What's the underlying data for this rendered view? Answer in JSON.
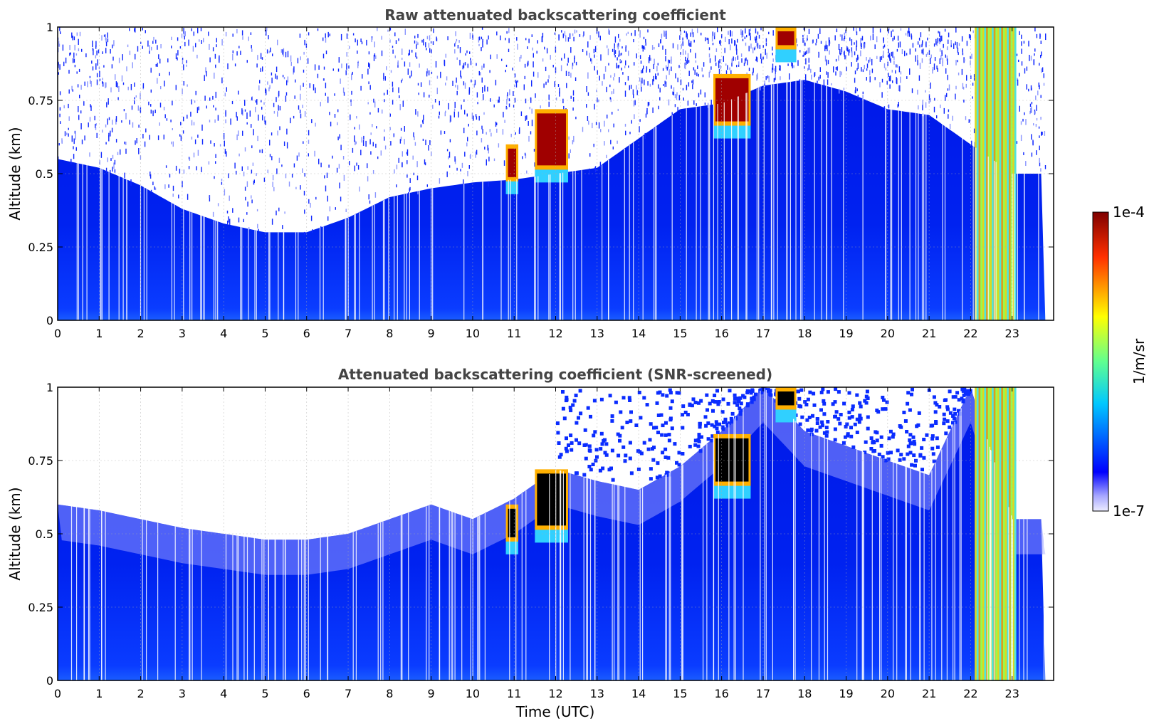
{
  "chart_data": [
    {
      "type": "heatmap",
      "title": "Raw attenuated backscattering coefficient",
      "xlabel": "",
      "ylabel": "Altitude (km)",
      "xlim": [
        0,
        24
      ],
      "ylim": [
        0,
        1
      ],
      "x_ticks": [
        "0",
        "1",
        "2",
        "3",
        "4",
        "5",
        "6",
        "7",
        "8",
        "9",
        "10",
        "11",
        "12",
        "13",
        "14",
        "15",
        "16",
        "17",
        "18",
        "19",
        "20",
        "21",
        "22",
        "23"
      ],
      "y_ticks": [
        "0",
        "0.25",
        "0.5",
        "0.75",
        "1"
      ],
      "grid": true,
      "colormap": "jet",
      "color_scale": "log",
      "noise_top_km": [
        [
          0,
          0.55
        ],
        [
          1,
          0.52
        ],
        [
          2,
          0.46
        ],
        [
          3,
          0.38
        ],
        [
          4,
          0.33
        ],
        [
          5,
          0.3
        ],
        [
          6,
          0.3
        ],
        [
          7,
          0.35
        ],
        [
          8,
          0.42
        ],
        [
          9,
          0.45
        ],
        [
          10,
          0.47
        ],
        [
          11,
          0.48
        ],
        [
          12,
          0.5
        ],
        [
          13,
          0.52
        ],
        [
          14,
          0.62
        ],
        [
          15,
          0.72
        ],
        [
          16,
          0.74
        ],
        [
          17,
          0.8
        ],
        [
          18,
          0.82
        ],
        [
          19,
          0.78
        ],
        [
          20,
          0.72
        ],
        [
          21,
          0.7
        ],
        [
          22,
          0.6
        ],
        [
          23,
          0.5
        ]
      ],
      "cloud_features": [
        {
          "t_start": 10.8,
          "t_end": 11.1,
          "base_km": 0.43,
          "top_km": 0.6
        },
        {
          "t_start": 11.5,
          "t_end": 12.3,
          "base_km": 0.47,
          "top_km": 0.72
        },
        {
          "t_start": 15.8,
          "t_end": 16.7,
          "base_km": 0.62,
          "top_km": 0.84
        },
        {
          "t_start": 17.3,
          "t_end": 17.8,
          "base_km": 0.88,
          "top_km": 1.0
        },
        {
          "t_start": 22.1,
          "t_end": 23.1,
          "base_km": 0.0,
          "top_km": 1.0
        }
      ]
    },
    {
      "type": "heatmap",
      "title": "Attenuated backscattering coefficient (SNR-screened)",
      "xlabel": "Time (UTC)",
      "ylabel": "Altitude (km)",
      "xlim": [
        0,
        24
      ],
      "ylim": [
        0,
        1
      ],
      "x_ticks": [
        "0",
        "1",
        "2",
        "3",
        "4",
        "5",
        "6",
        "7",
        "8",
        "9",
        "10",
        "11",
        "12",
        "13",
        "14",
        "15",
        "16",
        "17",
        "18",
        "19",
        "20",
        "21",
        "22",
        "23"
      ],
      "y_ticks": [
        "0",
        "0.25",
        "0.5",
        "0.75",
        "1"
      ],
      "grid": true,
      "colormap": "jet",
      "color_scale": "log",
      "screened_top_km": [
        [
          0,
          0.6
        ],
        [
          1,
          0.58
        ],
        [
          2,
          0.55
        ],
        [
          3,
          0.52
        ],
        [
          4,
          0.5
        ],
        [
          5,
          0.48
        ],
        [
          6,
          0.48
        ],
        [
          7,
          0.5
        ],
        [
          8,
          0.55
        ],
        [
          9,
          0.6
        ],
        [
          10,
          0.55
        ],
        [
          11,
          0.62
        ],
        [
          12,
          0.72
        ],
        [
          13,
          0.68
        ],
        [
          14,
          0.65
        ],
        [
          15,
          0.73
        ],
        [
          16,
          0.85
        ],
        [
          17,
          1.0
        ],
        [
          18,
          0.85
        ],
        [
          19,
          0.8
        ],
        [
          20,
          0.75
        ],
        [
          21,
          0.7
        ],
        [
          22,
          1.0
        ],
        [
          23,
          0.55
        ]
      ]
    }
  ],
  "colorbar": {
    "label": "1/m/sr",
    "min_label": "1e-7",
    "max_label": "1e-4"
  }
}
